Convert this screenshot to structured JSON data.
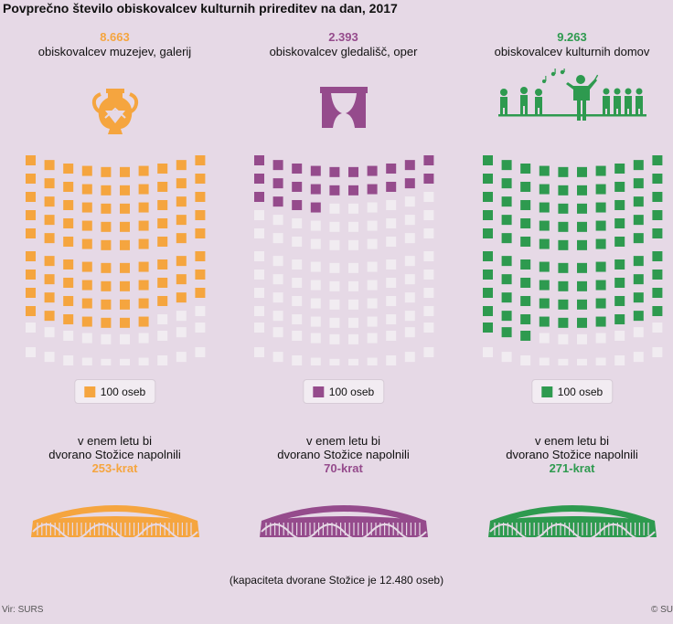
{
  "title": "Povprečno število obiskovalcev kulturnih prireditev na dan, 2017",
  "legend_label": "100 oseb",
  "fill_line1": "v enem letu bi",
  "fill_line2": "dvorano Stožice napolnili",
  "note": "(kapaciteta dvorane Stožice je 12.480 oseb)",
  "source": "Vir: SURS",
  "copyright": "© SU",
  "empty_seat_color": "#f1ecf1",
  "chart_data": {
    "type": "pictogram",
    "unit": "100 oseb",
    "series": [
      {
        "value_text": "8.663",
        "label": "obiskovalcev muzejev, galerij",
        "value": 8663,
        "times": "253-krat",
        "color": "#f5a53f",
        "icon": "amphora-icon"
      },
      {
        "value_text": "2.393",
        "label": "obiskovalcev gledališč, oper",
        "value": 2393,
        "times": "70-krat",
        "color": "#954b8c",
        "icon": "stage-curtain-icon"
      },
      {
        "value_text": "9.263",
        "label": "obiskovalcev kulturnih domov",
        "value": 9263,
        "times": "271-krat",
        "color": "#2e9a4f",
        "icon": "choir-conductor-icon"
      }
    ]
  }
}
